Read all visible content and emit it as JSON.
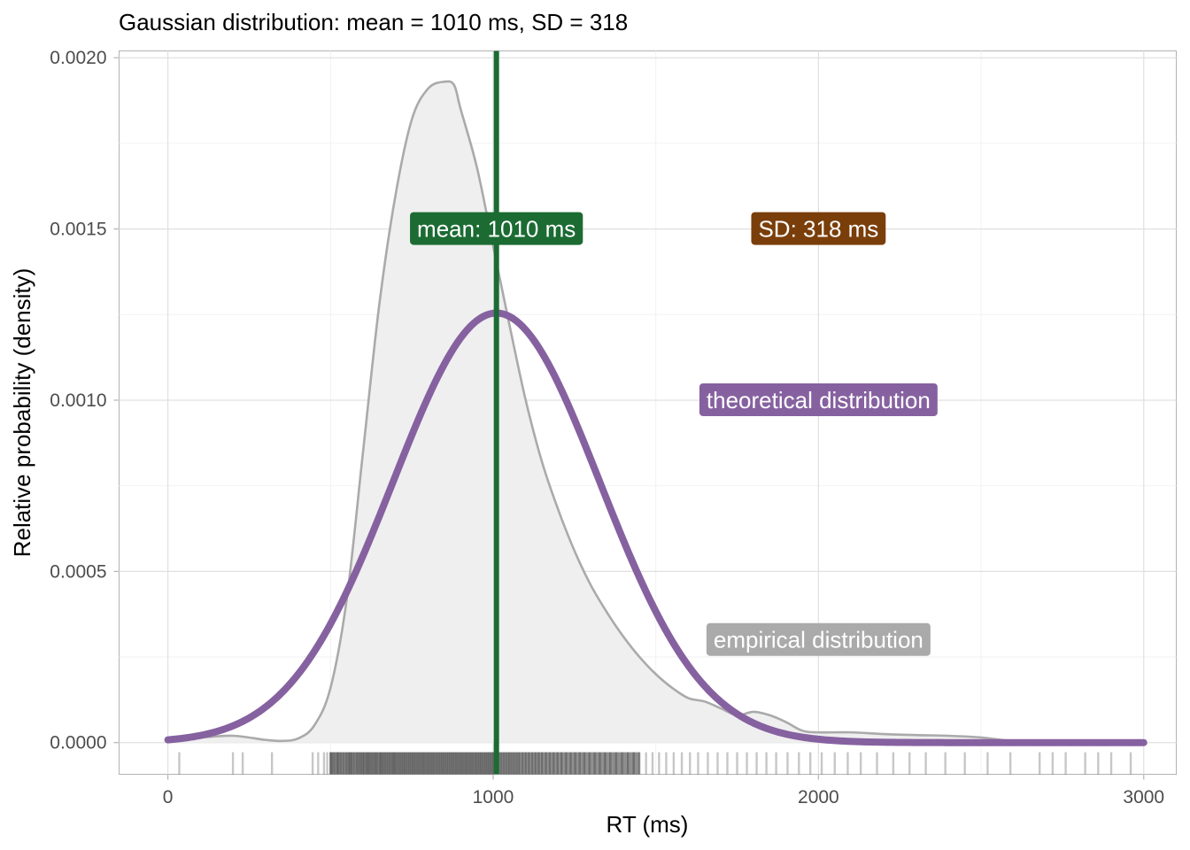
{
  "chart_data": {
    "type": "area",
    "title": "Gaussian distribution: mean = 1010 ms, SD = 318",
    "xlabel": "RT (ms)",
    "ylabel": "Relative probability (density)",
    "xlim": [
      -150,
      3100
    ],
    "ylim": [
      -9.25e-05,
      0.00202
    ],
    "x_ticks": [
      0,
      1000,
      2000,
      3000
    ],
    "x_tick_labels": [
      "0",
      "1000",
      "2000",
      "3000"
    ],
    "y_ticks": [
      0.0,
      0.0005,
      0.001,
      0.0015,
      0.002
    ],
    "y_tick_labels": [
      "0.0000",
      "0.0005",
      "0.0010",
      "0.0015",
      "0.0020"
    ],
    "grid": true,
    "mean": 1010,
    "sd": 318,
    "series": [
      {
        "name": "empirical distribution",
        "color": "#aaaaaa",
        "fill": "#efefef",
        "x": [
          0,
          100,
          200,
          300,
          350,
          400,
          450,
          500,
          550,
          600,
          650,
          700,
          750,
          800,
          850,
          880,
          900,
          950,
          1000,
          1050,
          1100,
          1150,
          1200,
          1250,
          1300,
          1350,
          1400,
          1450,
          1500,
          1550,
          1600,
          1650,
          1700,
          1750,
          1800,
          1850,
          1900,
          1950,
          2000,
          2100,
          2200,
          2300,
          2400,
          2500,
          2600,
          2800,
          3000
        ],
        "y": [
          1e-05,
          1.5e-05,
          2e-05,
          8e-06,
          5e-06,
          1.2e-05,
          5e-05,
          0.00016,
          0.00042,
          0.00085,
          0.00128,
          0.0016,
          0.00182,
          0.00191,
          0.00193,
          0.00192,
          0.00185,
          0.00168,
          0.00145,
          0.00122,
          0.001,
          0.00082,
          0.00068,
          0.00056,
          0.00046,
          0.00038,
          0.00031,
          0.00025,
          0.0002,
          0.00016,
          0.00013,
          0.00012,
          0.0001,
          8e-05,
          9e-05,
          8e-05,
          6e-05,
          3.5e-05,
          3e-05,
          3e-05,
          2.5e-05,
          2.2e-05,
          2e-05,
          1.5e-05,
          5e-06,
          2e-06,
          0.0
        ]
      },
      {
        "name": "theoretical distribution",
        "color": "#8661a0",
        "distribution": "normal",
        "mean": 1010,
        "sd": 318,
        "x_range": [
          0,
          3000
        ]
      }
    ],
    "annotations": [
      {
        "label": "mean: 1010 ms",
        "x": 1010,
        "y": 0.0015,
        "fill": "#1b6b33"
      },
      {
        "label": "SD: 318 ms",
        "x": 2000,
        "y": 0.0015,
        "fill": "#7a3e0a"
      },
      {
        "label": "theoretical distribution",
        "x": 2000,
        "y": 0.001,
        "fill": "#8661a0"
      },
      {
        "label": "empirical distribution",
        "x": 2000,
        "y": 0.0003,
        "fill": "#aaaaaa"
      }
    ],
    "vline": {
      "x": 1010,
      "color": "#1b6b33"
    },
    "rug": [
      35,
      200,
      230,
      320,
      445,
      462,
      480,
      490,
      500,
      505,
      512,
      520,
      525,
      532,
      540,
      548,
      555,
      560,
      565,
      572,
      580,
      586,
      592,
      598,
      603,
      610,
      615,
      620,
      626,
      632,
      638,
      643,
      650,
      655,
      660,
      666,
      672,
      678,
      684,
      690,
      695,
      700,
      706,
      712,
      718,
      724,
      730,
      736,
      742,
      748,
      754,
      760,
      766,
      772,
      778,
      784,
      790,
      796,
      802,
      808,
      814,
      820,
      826,
      832,
      838,
      844,
      850,
      856,
      862,
      868,
      874,
      880,
      886,
      892,
      898,
      904,
      910,
      916,
      922,
      928,
      934,
      940,
      946,
      952,
      958,
      964,
      970,
      976,
      982,
      988,
      994,
      1000,
      1008,
      1016,
      1024,
      1032,
      1040,
      1048,
      1056,
      1064,
      1072,
      1080,
      1090,
      1100,
      1110,
      1120,
      1130,
      1140,
      1150,
      1162,
      1174,
      1186,
      1198,
      1210,
      1224,
      1238,
      1252,
      1266,
      1280,
      1296,
      1312,
      1328,
      1344,
      1360,
      1378,
      1396,
      1414,
      1432,
      1450,
      1470,
      1490,
      1510,
      1532,
      1555,
      1580,
      1605,
      1630,
      1660,
      1690,
      1720,
      1750,
      1780,
      1810,
      1840,
      1870,
      1905,
      1940,
      1975,
      2010,
      2050,
      2090,
      2130,
      2180,
      2230,
      2280,
      2330,
      2390,
      2450,
      2520,
      2590,
      2680,
      2720,
      2760,
      2820,
      2860,
      2900,
      2960
    ]
  }
}
